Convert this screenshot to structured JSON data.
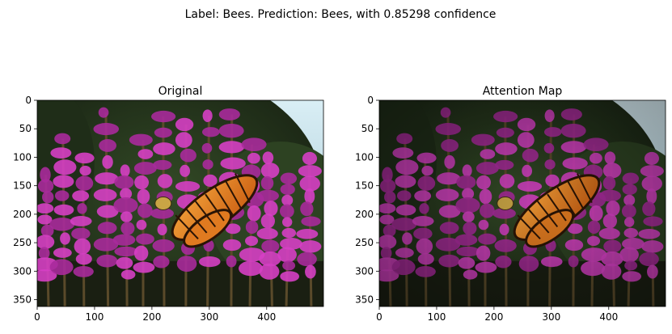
{
  "figure": {
    "suptitle": "Label: Bees. Prediction: Bees, with 0.85298 confidence"
  },
  "chart_data": [
    {
      "type": "image",
      "title": "Original",
      "xlim": [
        0,
        499
      ],
      "ylim": [
        362,
        0
      ],
      "xticks": [
        0,
        100,
        200,
        300,
        400
      ],
      "yticks": [
        0,
        50,
        100,
        150,
        200,
        250,
        300,
        350
      ],
      "content": "photo: monarch butterfly and bee on purple loosestrife flowers",
      "overlay": "none"
    },
    {
      "type": "image",
      "title": "Attention Map",
      "xlim": [
        0,
        499
      ],
      "ylim": [
        362,
        0
      ],
      "xticks": [
        0,
        100,
        200,
        300,
        400
      ],
      "yticks": [
        0,
        50,
        100,
        150,
        200,
        250,
        300,
        350
      ],
      "content": "same photo with darkened attention overlay",
      "overlay": "attention"
    }
  ]
}
